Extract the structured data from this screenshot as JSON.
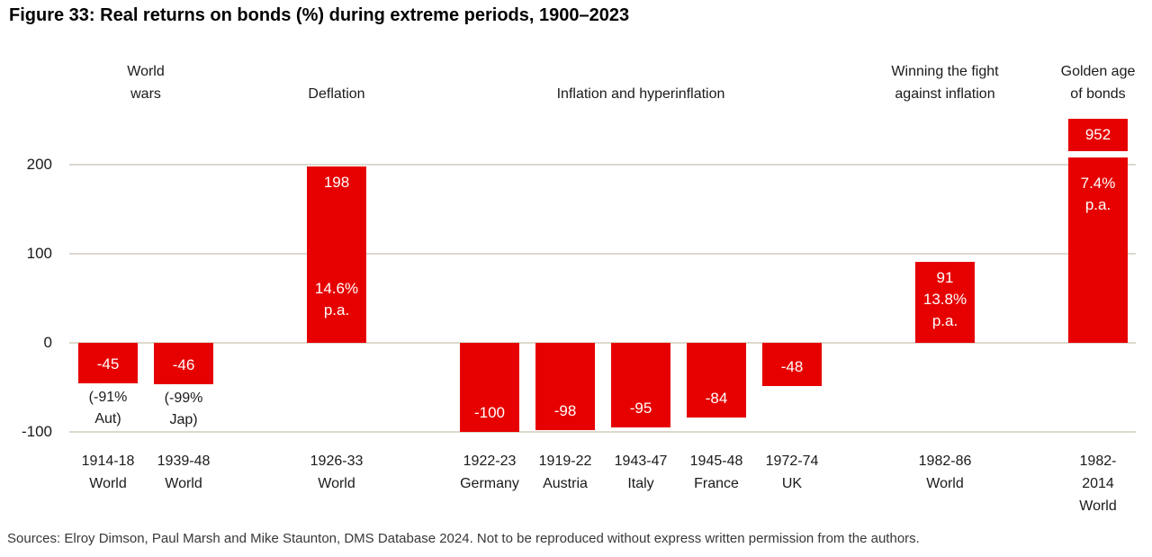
{
  "figure": {
    "title": "Figure 33: Real returns on bonds (%) during extreme periods, 1900–2023",
    "source": "Sources: Elroy Dimson, Paul Marsh and Mike Staunton, DMS Database 2024. Not to be reproduced without express written permission from the authors."
  },
  "colors": {
    "bar": "#e60000",
    "gridline": "#dcd8cd",
    "bar_label": "#ffffff",
    "text": "#1a1a1a"
  },
  "chart_data": {
    "type": "bar",
    "title": "Figure 33: Real returns on bonds (%) during extreme periods, 1900–2023",
    "xlabel": "",
    "ylabel": "",
    "ylim": [
      -100,
      210
    ],
    "yticks": [
      200,
      100,
      0,
      -100
    ],
    "grid": true,
    "legend": false,
    "groups": [
      {
        "label": "World\nwars",
        "bars": [
          {
            "x": "1914-18\nWorld",
            "value": -45,
            "label": "-45",
            "note": "(-91%\nAut)"
          },
          {
            "x": "1939-48\nWorld",
            "value": -46,
            "label": "-46",
            "note": "(-99%\nJap)"
          }
        ]
      },
      {
        "label": "Deflation",
        "bars": [
          {
            "x": "1926-33\nWorld",
            "value": 198,
            "label": "198",
            "mid_label": "14.6%\np.a.",
            "mid_offset": 124
          }
        ]
      },
      {
        "label": "Inflation and hyperinflation",
        "bars": [
          {
            "x": "1922-23\nGermany",
            "value": -100,
            "label": "-100"
          },
          {
            "x": "1919-22\nAustria",
            "value": -98,
            "label": "-98"
          },
          {
            "x": "1943-47\nItaly",
            "value": -95,
            "label": "-95"
          },
          {
            "x": "1945-48\nFrance",
            "value": -84,
            "label": "-84"
          },
          {
            "x": "1972-74\nUK",
            "value": -48,
            "label": "-48"
          }
        ]
      },
      {
        "label": "Winning the fight\nagainst inflation",
        "bars": [
          {
            "x": "1982-86\nWorld",
            "value": 91,
            "label": "91\n13.8%\np.a."
          }
        ]
      },
      {
        "label": "Golden age\nof bonds",
        "bars": [
          {
            "x": "1982-\n2014\nWorld",
            "value": 952,
            "label": "7.4%\np.a.",
            "label_pad": 17,
            "capped": true,
            "cap_label": "952",
            "visual_value": 208
          }
        ]
      }
    ]
  }
}
